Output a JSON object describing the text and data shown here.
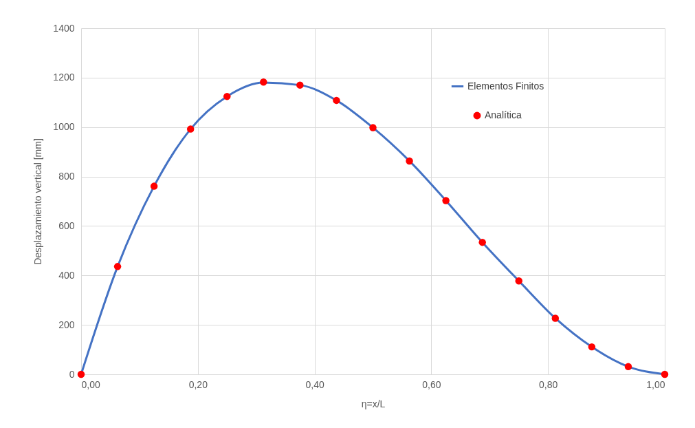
{
  "chart_data": {
    "type": "line",
    "xlabel": "η=x/L",
    "ylabel": "Desplazamiento vertical [mm]",
    "x": [
      0,
      0.0625,
      0.125,
      0.1875,
      0.25,
      0.3125,
      0.375,
      0.4375,
      0.5,
      0.5625,
      0.625,
      0.6875,
      0.75,
      0.8125,
      0.875,
      0.9375,
      1
    ],
    "series": [
      {
        "name": "Elementos Finitos",
        "type": "line",
        "color": "#4472c4",
        "marker": "none",
        "values": [
          0,
          436,
          761,
          992,
          1124,
          1180,
          1170,
          1108,
          998,
          863,
          703,
          534,
          378,
          227,
          111,
          31,
          0
        ]
      },
      {
        "name": "Analítica",
        "type": "scatter",
        "color": "#ff0000",
        "marker": "circle",
        "values": [
          0,
          436,
          761,
          992,
          1124,
          1182,
          1170,
          1108,
          998,
          863,
          703,
          534,
          378,
          227,
          111,
          31,
          0
        ]
      }
    ],
    "xlim": [
      0,
      1
    ],
    "xticks": [
      {
        "value": 0,
        "label": "0,00"
      },
      {
        "value": 0.2,
        "label": "0,20"
      },
      {
        "value": 0.4,
        "label": "0,40"
      },
      {
        "value": 0.6,
        "label": "0,60"
      },
      {
        "value": 0.8,
        "label": "0,80"
      },
      {
        "value": 1,
        "label": "1,00"
      }
    ],
    "ylim": [
      0,
      1400
    ],
    "yticks": [
      0,
      200,
      400,
      600,
      800,
      1000,
      1200,
      1400
    ],
    "grid": true,
    "legend": "top right"
  }
}
